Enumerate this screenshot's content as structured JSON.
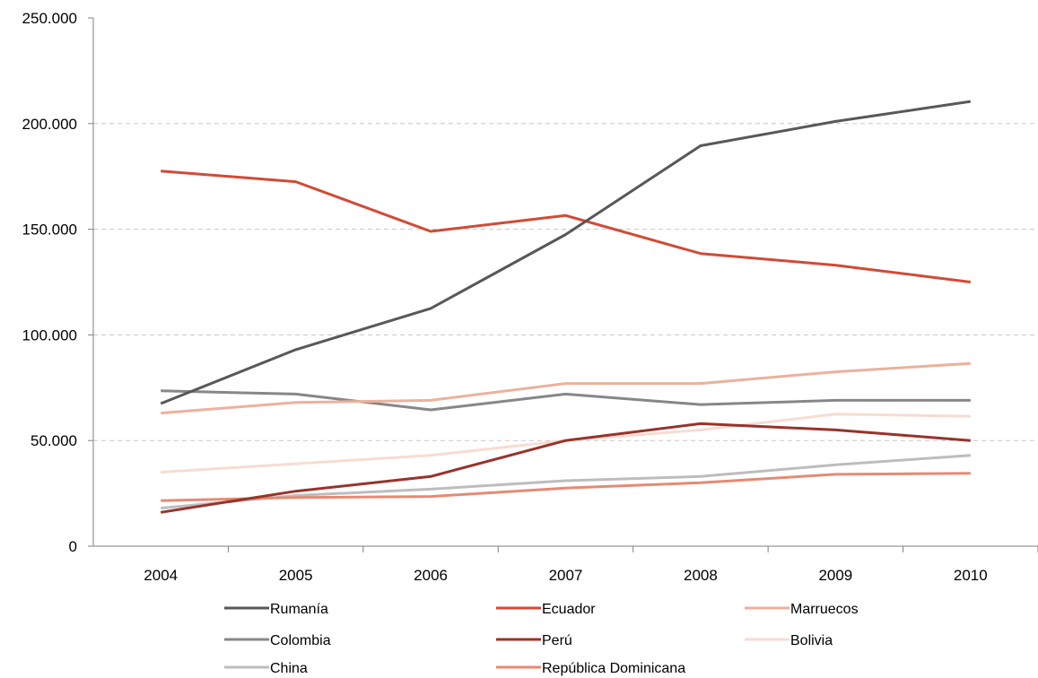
{
  "chart_data": {
    "type": "line",
    "title": "",
    "xlabel": "",
    "ylabel": "",
    "categories": [
      "2004",
      "2005",
      "2006",
      "2007",
      "2008",
      "2009",
      "2010"
    ],
    "ylim": [
      0,
      250000
    ],
    "yticks": [
      0,
      50000,
      100000,
      150000,
      200000,
      250000
    ],
    "ytick_labels": [
      "0",
      "50.000",
      "100.000",
      "150.000",
      "200.000",
      "250.000"
    ],
    "grid": "horizontal dashed",
    "legend_position": "bottom",
    "series": [
      {
        "name": "Rumanía",
        "color": "#58585a",
        "values": [
          67500,
          93000,
          112500,
          147500,
          189500,
          201000,
          210500
        ]
      },
      {
        "name": "Ecuador",
        "color": "#d24a36",
        "values": [
          177500,
          172500,
          149000,
          156500,
          138500,
          133000,
          125000
        ]
      },
      {
        "name": "Marruecos",
        "color": "#ecb19d",
        "values": [
          63000,
          68000,
          69000,
          77000,
          77000,
          82500,
          86500
        ]
      },
      {
        "name": "Colombia",
        "color": "#87878a",
        "values": [
          73500,
          72000,
          64500,
          72000,
          67000,
          69000,
          69000
        ]
      },
      {
        "name": "Perú",
        "color": "#98332a",
        "values": [
          16000,
          26000,
          33000,
          50000,
          58000,
          55000,
          50000
        ]
      },
      {
        "name": "Bolivia",
        "color": "#f7dcd2",
        "values": [
          35000,
          39000,
          43000,
          50000,
          55000,
          62500,
          61500
        ]
      },
      {
        "name": "China",
        "color": "#bdbdbf",
        "values": [
          18000,
          24000,
          27000,
          31000,
          33000,
          38500,
          43000
        ]
      },
      {
        "name": "República Dominicana",
        "color": "#e68a74",
        "values": [
          21500,
          23000,
          23500,
          27500,
          30000,
          34000,
          34500
        ]
      }
    ]
  }
}
